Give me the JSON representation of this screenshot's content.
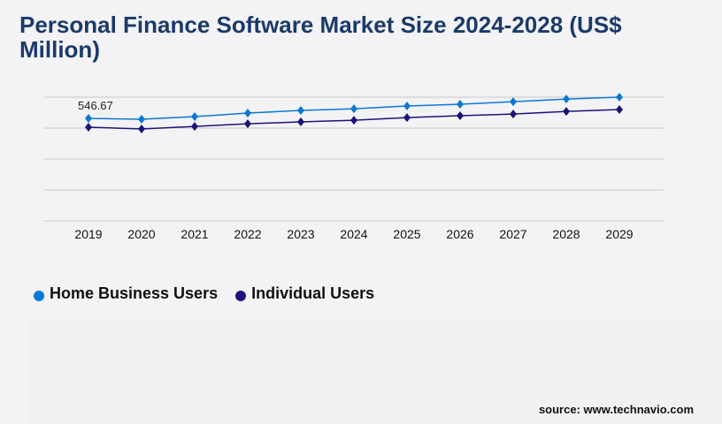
{
  "chart_data": {
    "type": "line",
    "title": "Personal Finance Software Market Size 2024-2028 (US$ Million)",
    "categories": [
      "2019",
      "2020",
      "2021",
      "2022",
      "2023",
      "2024",
      "2025",
      "2026",
      "2027",
      "2028",
      "2029"
    ],
    "ylim": [
      0,
      660
    ],
    "grid": true,
    "legend_placement": "bottom-left",
    "series": [
      {
        "name": "Home Business Users",
        "color": "#0a78d4",
        "marker": "diamond",
        "values": [
          546.67,
          542,
          556,
          575,
          589,
          598,
          613,
          622,
          636,
          650,
          660
        ]
      },
      {
        "name": "Individual Users",
        "color": "#1a1478",
        "marker": "diamond",
        "values": [
          500,
          490,
          504,
          518,
          528,
          537,
          551,
          561,
          570,
          584,
          594
        ]
      }
    ],
    "annotations": [
      {
        "series": "Home Business Users",
        "category": "2019",
        "text": "546.67"
      }
    ]
  },
  "source": "source: www.technavio.com"
}
